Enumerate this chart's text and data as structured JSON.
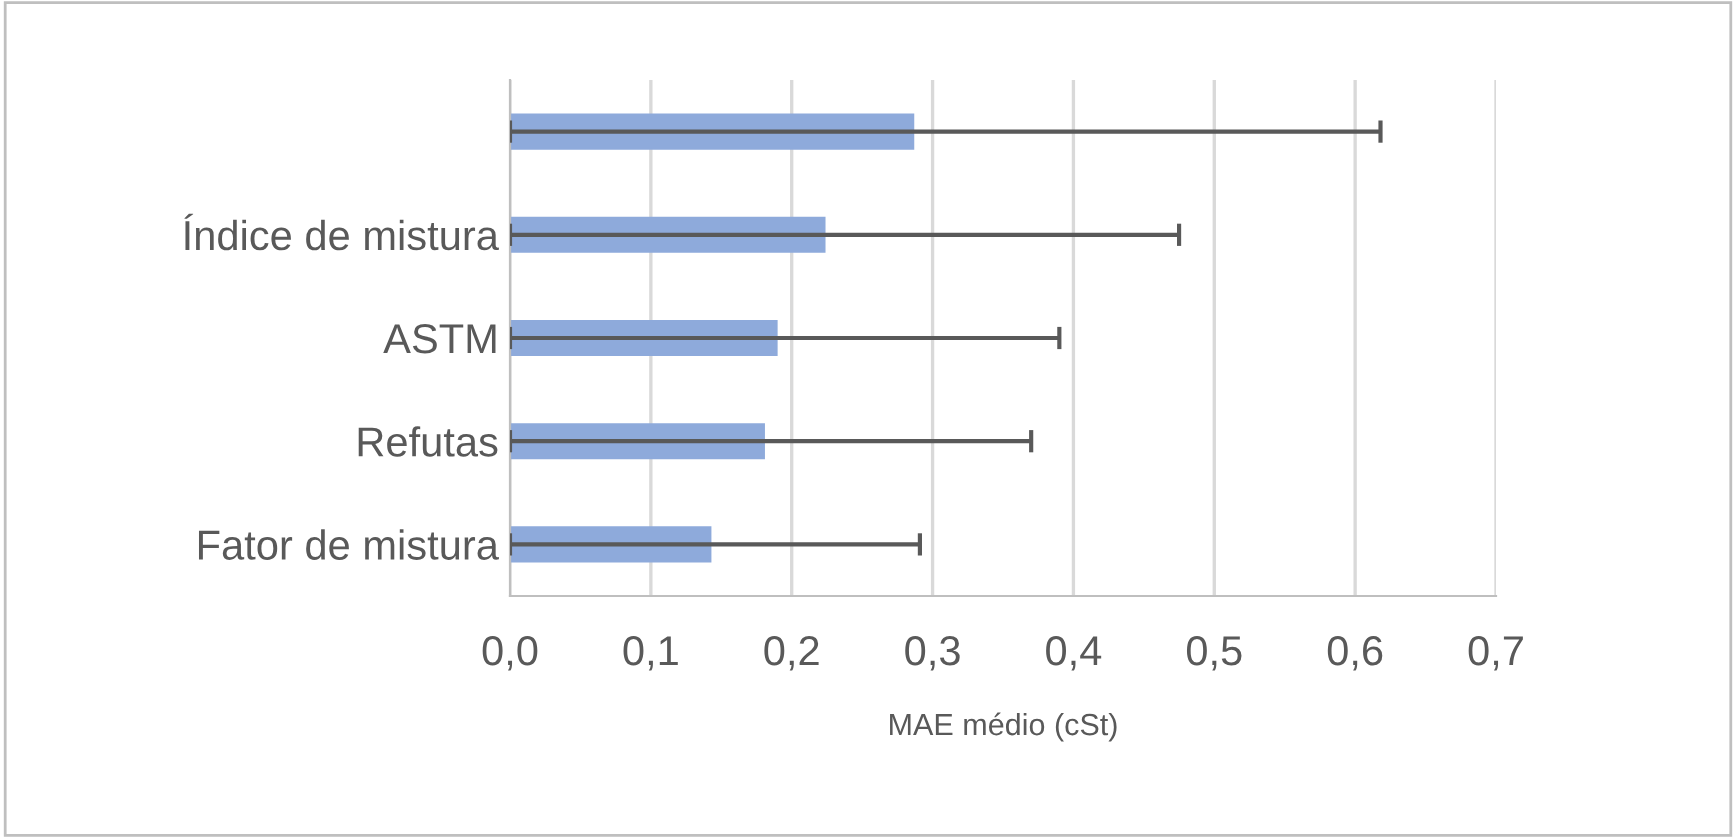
{
  "chart_data": {
    "type": "bar",
    "orientation": "horizontal",
    "xlabel": "MAE médio (cSt)",
    "categories": [
      null,
      "Índice de mistura",
      "ASTM",
      "Refutas",
      "Fator de mistura"
    ],
    "values": [
      0.287,
      0.224,
      0.19,
      0.181,
      0.143
    ],
    "errors": [
      [
        0,
        0.618
      ],
      [
        0,
        0.475
      ],
      [
        0,
        0.39
      ],
      [
        0,
        0.37
      ],
      [
        0,
        0.291
      ]
    ],
    "color": "#8eaadb",
    "xlim": [
      0,
      0.7
    ],
    "xticks": [
      {
        "value": 0,
        "label": "0,0"
      },
      {
        "value": 0.1,
        "label": "0,1"
      },
      {
        "value": 0.2,
        "label": "0,2"
      },
      {
        "value": 0.3,
        "label": "0,3"
      },
      {
        "value": 0.4,
        "label": "0,4"
      },
      {
        "value": 0.5,
        "label": "0,5"
      },
      {
        "value": 0.6,
        "label": "0,6"
      },
      {
        "value": 0.7,
        "label": "0,7"
      }
    ],
    "grid": "x",
    "legend": false
  }
}
